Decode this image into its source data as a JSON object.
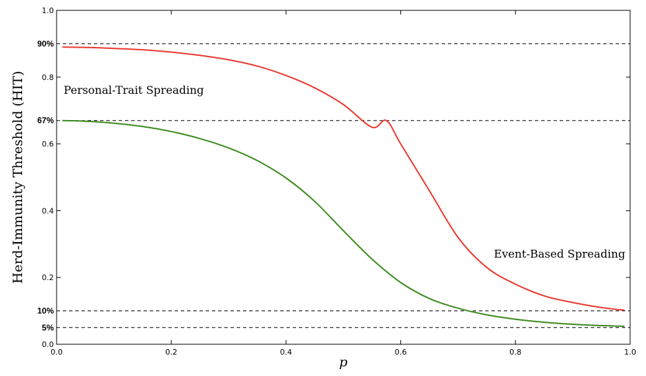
{
  "chart_data": {
    "type": "line",
    "title": "",
    "xlabel": "p",
    "ylabel": "Herd-Immunity Threshold (HIT)",
    "xlim": [
      0.0,
      1.0
    ],
    "ylim": [
      0.0,
      1.0
    ],
    "xticks": [
      "0.0",
      "0.2",
      "0.4",
      "0.6",
      "0.8",
      "1.0"
    ],
    "yticks": [
      "0.0",
      "0.2",
      "0.4",
      "0.6",
      "0.8",
      "1.0"
    ],
    "grid": false,
    "reference_lines": [
      {
        "y": 0.9,
        "label": "90%"
      },
      {
        "y": 0.67,
        "label": "67%"
      },
      {
        "y": 0.1,
        "label": "10%"
      },
      {
        "y": 0.05,
        "label": "5%"
      }
    ],
    "series": [
      {
        "color": "#e8392f",
        "x": [
          0.01,
          0.05,
          0.1,
          0.15,
          0.2,
          0.25,
          0.3,
          0.35,
          0.4,
          0.45,
          0.5,
          0.55,
          0.575,
          0.6,
          0.65,
          0.7,
          0.75,
          0.8,
          0.85,
          0.9,
          0.95,
          0.99
        ],
        "y": [
          0.89,
          0.889,
          0.886,
          0.882,
          0.875,
          0.865,
          0.852,
          0.833,
          0.805,
          0.768,
          0.718,
          0.65,
          0.67,
          0.6,
          0.46,
          0.32,
          0.23,
          0.18,
          0.145,
          0.125,
          0.11,
          0.102
        ]
      },
      {
        "color": "#3c8a1f",
        "x": [
          0.01,
          0.05,
          0.1,
          0.15,
          0.2,
          0.25,
          0.3,
          0.35,
          0.4,
          0.45,
          0.5,
          0.55,
          0.6,
          0.65,
          0.7,
          0.75,
          0.8,
          0.85,
          0.9,
          0.95,
          0.99
        ],
        "y": [
          0.67,
          0.668,
          0.662,
          0.652,
          0.637,
          0.616,
          0.588,
          0.55,
          0.498,
          0.428,
          0.34,
          0.255,
          0.185,
          0.137,
          0.108,
          0.088,
          0.075,
          0.066,
          0.06,
          0.056,
          0.054
        ]
      }
    ],
    "annotations": [
      {
        "text": "Personal-Trait Spreading",
        "x": 0.01,
        "y": 0.76
      },
      {
        "text": "Event-Based Spreading",
        "x": 0.76,
        "y": 0.27
      }
    ]
  }
}
